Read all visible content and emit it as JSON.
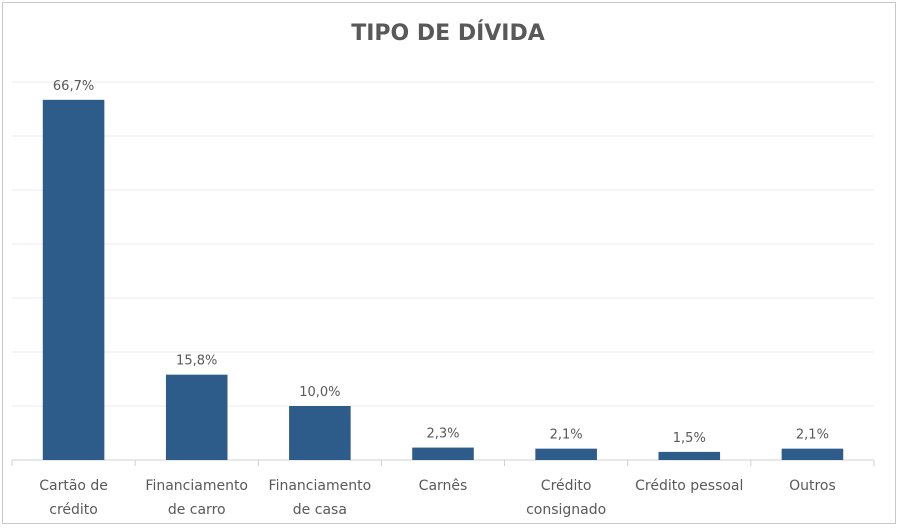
{
  "chart_data": {
    "type": "bar",
    "title": "TIPO DE DÍVIDA",
    "xlabel": "",
    "ylabel": "",
    "ylim": [
      0,
      70
    ],
    "grid": true,
    "legend": "none",
    "categories": [
      [
        "Cartão de",
        "crédito"
      ],
      [
        "Financiamento",
        "de carro"
      ],
      [
        "Financiamento",
        "de casa"
      ],
      [
        "Carnês"
      ],
      [
        "Crédito",
        "consignado"
      ],
      [
        "Crédito pessoal"
      ],
      [
        "Outros"
      ]
    ],
    "values": [
      66.7,
      15.8,
      10.0,
      2.3,
      2.1,
      1.5,
      2.1
    ],
    "data_labels": [
      "66,7%",
      "15,8%",
      "10,0%",
      "2,3%",
      "2,1%",
      "1,5%",
      "2,1%"
    ],
    "bar_color": "#2e5c8a",
    "grid_color": "#ececec",
    "axis_color": "#d0d0d0"
  }
}
